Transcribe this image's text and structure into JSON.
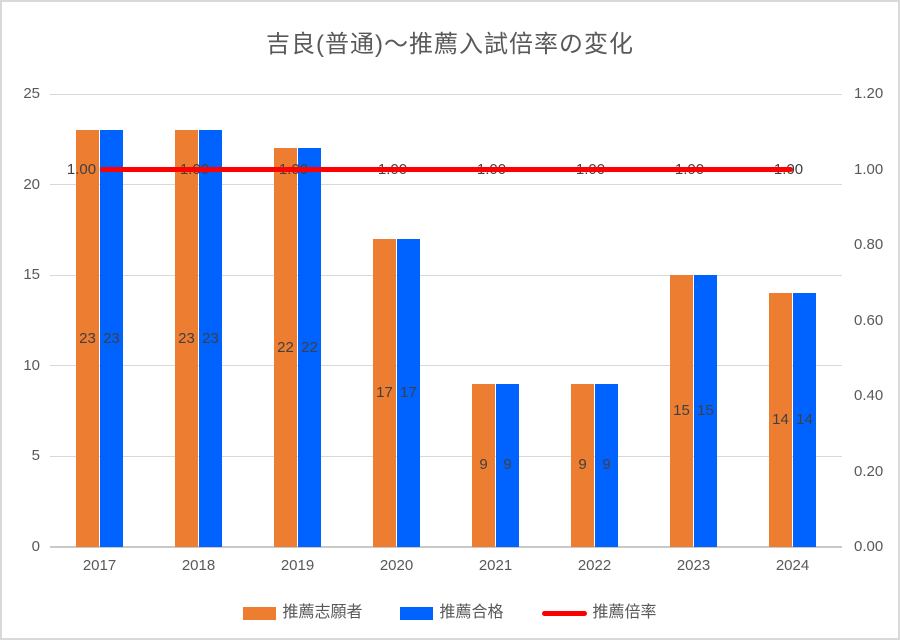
{
  "chart_data": {
    "type": "bar",
    "title": "吉良(普通)～推薦入試倍率の変化",
    "categories": [
      "2017",
      "2018",
      "2019",
      "2020",
      "2021",
      "2022",
      "2023",
      "2024"
    ],
    "series": [
      {
        "name": "推薦志願者",
        "type": "bar",
        "axis": "left",
        "color": "#ED7D31",
        "values": [
          23,
          23,
          22,
          17,
          9,
          9,
          15,
          14
        ],
        "labels": [
          "23",
          "23",
          "22",
          "17",
          "9",
          "9",
          "15",
          "14"
        ]
      },
      {
        "name": "推薦合格",
        "type": "bar",
        "axis": "left",
        "color": "#0062FF",
        "values": [
          23,
          23,
          22,
          17,
          9,
          9,
          15,
          14
        ],
        "labels": [
          "23",
          "23",
          "22",
          "17",
          "9",
          "9",
          "15",
          "14"
        ]
      },
      {
        "name": "推薦倍率",
        "type": "line",
        "axis": "right",
        "color": "#FF0000",
        "values": [
          1.0,
          1.0,
          1.0,
          1.0,
          1.0,
          1.0,
          1.0,
          1.0
        ],
        "labels": [
          "1.00",
          "1.00",
          "1.00",
          "1.00",
          "1.00",
          "1.00",
          "1.00",
          "1.00"
        ]
      }
    ],
    "left_axis": {
      "min": 0,
      "max": 25,
      "tick_labels": [
        "0",
        "5",
        "10",
        "15",
        "20",
        "25"
      ]
    },
    "right_axis": {
      "min": 0.0,
      "max": 1.2,
      "tick_labels": [
        "0.00",
        "0.20",
        "0.40",
        "0.60",
        "0.80",
        "1.00",
        "1.20"
      ]
    },
    "legend": {
      "position": "bottom",
      "entries": [
        "推薦志願者",
        "推薦合格",
        "推薦倍率"
      ]
    },
    "grid": true
  },
  "colors": {
    "background": "#FFFFFF",
    "border": "#D9D9D9",
    "gridline": "#D9D9D9",
    "axis_line": "#C9C9C9",
    "axis_text": "#595959",
    "title_text": "#595959",
    "data_label_text": "#404040",
    "bar_orange": "#ED7D31",
    "bar_blue": "#0062FF",
    "line_red": "#FF0000"
  }
}
